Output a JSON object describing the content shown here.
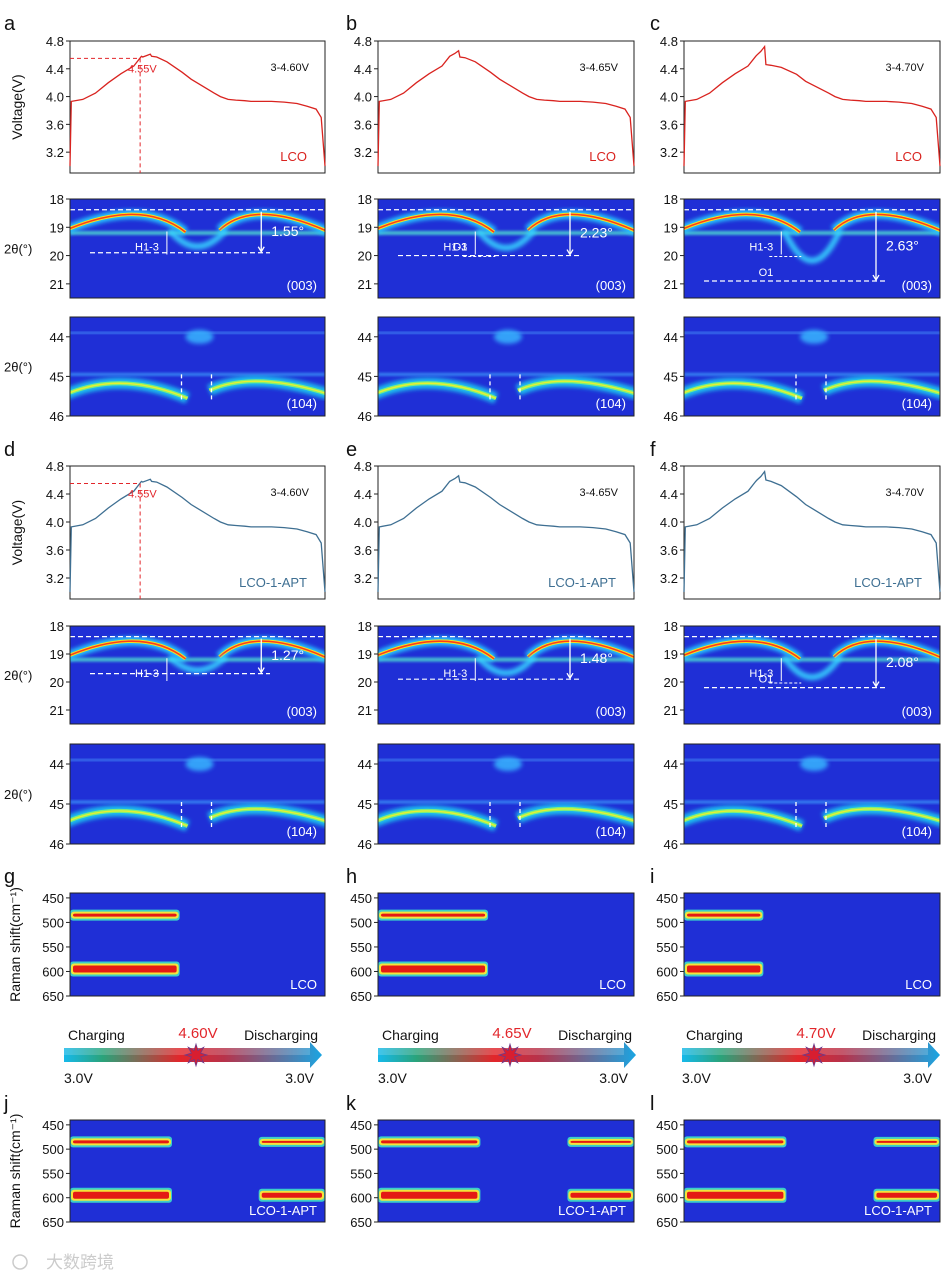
{
  "colors": {
    "lco_curve": "#d9231f",
    "apt_curve": "#3e6f92",
    "marker": "#e2262b",
    "heatmap_bg": "#1f2fd6",
    "arrow_start": "#19b8e8",
    "arrow_end": "#1fa7e0"
  },
  "chart_data": [
    {
      "type": "line",
      "panel": "a",
      "ylabel": "Voltage(V)",
      "ylim": [
        2.9,
        4.8
      ],
      "yticks": [
        "4.8",
        "4.4",
        "4.0",
        "3.6",
        "3.2"
      ],
      "range_label": "3-4.60V",
      "sample_label": "LCO",
      "sample": "lco",
      "marker_label": "4.55V",
      "marker_voltage": 4.55,
      "marker_time": 0.55,
      "peak": 4.6,
      "x": [
        0.0,
        0.01,
        0.1,
        0.2,
        0.3,
        0.4,
        0.5,
        0.56,
        0.57,
        0.6,
        0.63,
        0.64,
        0.68,
        0.76,
        0.88,
        0.95,
        1.13,
        1.18,
        1.24,
        1.3,
        1.37,
        1.42,
        1.58,
        1.68,
        1.78,
        1.86,
        1.93,
        1.97,
        2.0
      ],
      "y": [
        3.0,
        3.93,
        3.96,
        4.05,
        4.2,
        4.33,
        4.44,
        4.58,
        4.57,
        4.59,
        4.61,
        4.58,
        4.57,
        4.5,
        4.35,
        4.25,
        4.05,
        4.0,
        3.96,
        3.95,
        3.94,
        3.93,
        3.93,
        3.92,
        3.9,
        3.86,
        3.82,
        3.7,
        3.0
      ]
    },
    {
      "type": "line",
      "panel": "b",
      "ylabel": "",
      "ylim": [
        2.9,
        4.8
      ],
      "yticks": [
        "4.8",
        "4.4",
        "4.0",
        "3.6",
        "3.2"
      ],
      "range_label": "3-4.65V",
      "sample_label": "LCO",
      "sample": "lco",
      "peak": 4.65,
      "x": [
        0.0,
        0.01,
        0.1,
        0.2,
        0.3,
        0.4,
        0.5,
        0.56,
        0.57,
        0.6,
        0.63,
        0.64,
        0.68,
        0.76,
        0.88,
        0.95,
        1.13,
        1.18,
        1.24,
        1.3,
        1.37,
        1.42,
        1.58,
        1.68,
        1.78,
        1.86,
        1.93,
        1.97,
        2.0
      ],
      "y": [
        3.0,
        3.93,
        3.96,
        4.05,
        4.2,
        4.33,
        4.44,
        4.58,
        4.59,
        4.62,
        4.66,
        4.57,
        4.56,
        4.5,
        4.35,
        4.25,
        4.05,
        4.0,
        3.96,
        3.95,
        3.94,
        3.93,
        3.93,
        3.92,
        3.9,
        3.86,
        3.82,
        3.7,
        3.0
      ]
    },
    {
      "type": "line",
      "panel": "c",
      "ylabel": "",
      "ylim": [
        2.9,
        4.8
      ],
      "yticks": [
        "4.8",
        "4.4",
        "4.0",
        "3.6",
        "3.2"
      ],
      "range_label": "3-4.70V",
      "sample_label": "LCO",
      "sample": "lco",
      "peak": 4.7,
      "x": [
        0.0,
        0.01,
        0.1,
        0.2,
        0.3,
        0.4,
        0.5,
        0.56,
        0.57,
        0.6,
        0.63,
        0.64,
        0.68,
        0.76,
        0.88,
        0.95,
        1.13,
        1.18,
        1.24,
        1.3,
        1.37,
        1.42,
        1.58,
        1.68,
        1.78,
        1.86,
        1.93,
        1.97,
        2.0
      ],
      "y": [
        3.0,
        3.93,
        3.96,
        4.05,
        4.2,
        4.33,
        4.44,
        4.58,
        4.6,
        4.65,
        4.72,
        4.46,
        4.45,
        4.42,
        4.32,
        4.22,
        4.05,
        4.0,
        3.96,
        3.95,
        3.94,
        3.93,
        3.93,
        3.92,
        3.9,
        3.86,
        3.82,
        3.7,
        3.0
      ]
    },
    {
      "type": "line",
      "panel": "d",
      "ylabel": "Voltage(V)",
      "ylim": [
        2.9,
        4.8
      ],
      "yticks": [
        "4.8",
        "4.4",
        "4.0",
        "3.6",
        "3.2"
      ],
      "range_label": "3-4.60V",
      "sample_label": "LCO-1-APT",
      "sample": "apt",
      "marker_label": "4.55V",
      "marker_voltage": 4.55,
      "marker_time": 0.55,
      "peak": 4.6,
      "x": [
        0.0,
        0.01,
        0.1,
        0.2,
        0.3,
        0.4,
        0.5,
        0.56,
        0.57,
        0.6,
        0.63,
        0.64,
        0.68,
        0.76,
        0.88,
        0.95,
        1.13,
        1.18,
        1.24,
        1.3,
        1.37,
        1.42,
        1.58,
        1.68,
        1.78,
        1.86,
        1.93,
        1.97,
        2.0
      ],
      "y": [
        3.0,
        3.93,
        3.96,
        4.05,
        4.2,
        4.33,
        4.44,
        4.58,
        4.57,
        4.59,
        4.61,
        4.58,
        4.57,
        4.5,
        4.35,
        4.25,
        4.05,
        4.0,
        3.96,
        3.95,
        3.94,
        3.93,
        3.93,
        3.92,
        3.9,
        3.86,
        3.82,
        3.7,
        3.0
      ]
    },
    {
      "type": "line",
      "panel": "e",
      "ylabel": "",
      "ylim": [
        2.9,
        4.8
      ],
      "yticks": [
        "4.8",
        "4.4",
        "4.0",
        "3.6",
        "3.2"
      ],
      "range_label": "3-4.65V",
      "sample_label": "LCO-1-APT",
      "sample": "apt",
      "peak": 4.65,
      "x": [
        0.0,
        0.01,
        0.1,
        0.2,
        0.3,
        0.4,
        0.5,
        0.56,
        0.57,
        0.6,
        0.63,
        0.64,
        0.68,
        0.76,
        0.88,
        0.95,
        1.13,
        1.18,
        1.24,
        1.3,
        1.37,
        1.42,
        1.58,
        1.68,
        1.78,
        1.86,
        1.93,
        1.97,
        2.0
      ],
      "y": [
        3.0,
        3.93,
        3.96,
        4.05,
        4.2,
        4.33,
        4.44,
        4.58,
        4.59,
        4.62,
        4.66,
        4.57,
        4.56,
        4.5,
        4.35,
        4.25,
        4.05,
        4.0,
        3.96,
        3.95,
        3.94,
        3.93,
        3.93,
        3.92,
        3.9,
        3.86,
        3.82,
        3.7,
        3.0
      ]
    },
    {
      "type": "line",
      "panel": "f",
      "ylabel": "",
      "ylim": [
        2.9,
        4.8
      ],
      "yticks": [
        "4.8",
        "4.4",
        "4.0",
        "3.6",
        "3.2"
      ],
      "range_label": "3-4.70V",
      "sample_label": "LCO-1-APT",
      "sample": "apt",
      "peak": 4.7,
      "x": [
        0.0,
        0.01,
        0.1,
        0.2,
        0.3,
        0.4,
        0.5,
        0.56,
        0.57,
        0.6,
        0.63,
        0.64,
        0.68,
        0.76,
        0.88,
        0.95,
        1.13,
        1.18,
        1.24,
        1.3,
        1.37,
        1.42,
        1.58,
        1.68,
        1.78,
        1.86,
        1.93,
        1.97,
        2.0
      ],
      "y": [
        3.0,
        3.93,
        3.96,
        4.05,
        4.2,
        4.33,
        4.44,
        4.58,
        4.6,
        4.65,
        4.72,
        4.6,
        4.58,
        4.52,
        4.36,
        4.25,
        4.05,
        4.0,
        3.96,
        3.95,
        3.94,
        3.93,
        3.93,
        3.92,
        3.9,
        3.86,
        3.82,
        3.7,
        3.0
      ]
    },
    {
      "type": "heatmap",
      "panel": "a",
      "peak": "(003)",
      "ylabel": "2θ(°)",
      "ylim": [
        18,
        21.5
      ],
      "yticks": [
        "18",
        "19",
        "20",
        "21"
      ],
      "shift_label": "1.55°",
      "shift": 1.55,
      "phase_labels": [
        "H1-3"
      ],
      "dip": 19.9
    },
    {
      "type": "heatmap",
      "panel": "b",
      "peak": "(003)",
      "ylabel": "",
      "ylim": [
        18,
        21.5
      ],
      "yticks": [
        "18",
        "19",
        "20",
        "21"
      ],
      "shift_label": "2.23°",
      "shift": 2.23,
      "phase_labels": [
        "H1-3",
        "O1"
      ],
      "dip": 20.0
    },
    {
      "type": "heatmap",
      "panel": "c",
      "peak": "(003)",
      "ylabel": "",
      "ylim": [
        18,
        21.5
      ],
      "yticks": [
        "18",
        "19",
        "20",
        "21"
      ],
      "shift_label": "2.63°",
      "shift": 2.63,
      "phase_labels": [
        "H1-3",
        "O1"
      ],
      "dip": 20.9
    },
    {
      "type": "heatmap",
      "panel": "a",
      "peak": "(104)",
      "ylabel": "2θ(°)",
      "ylim": [
        43.5,
        46
      ],
      "yticks": [
        "44",
        "45",
        "46"
      ]
    },
    {
      "type": "heatmap",
      "panel": "b",
      "peak": "(104)",
      "ylabel": "",
      "ylim": [
        43.5,
        46
      ],
      "yticks": [
        "44",
        "45",
        "46"
      ]
    },
    {
      "type": "heatmap",
      "panel": "c",
      "peak": "(104)",
      "ylabel": "",
      "ylim": [
        43.5,
        46
      ],
      "yticks": [
        "44",
        "45",
        "46"
      ]
    },
    {
      "type": "heatmap",
      "panel": "d",
      "peak": "(003)",
      "ylabel": "2θ(°)",
      "ylim": [
        18,
        21.5
      ],
      "yticks": [
        "18",
        "19",
        "20",
        "21"
      ],
      "shift_label": "1.27°",
      "shift": 1.27,
      "phase_labels": [
        "H1-3"
      ],
      "dip": 19.7
    },
    {
      "type": "heatmap",
      "panel": "e",
      "peak": "(003)",
      "ylabel": "",
      "ylim": [
        18,
        21.5
      ],
      "yticks": [
        "18",
        "19",
        "20",
        "21"
      ],
      "shift_label": "1.48°",
      "shift": 1.48,
      "phase_labels": [
        "H1-3"
      ],
      "dip": 19.9
    },
    {
      "type": "heatmap",
      "panel": "f",
      "peak": "(003)",
      "ylabel": "",
      "ylim": [
        18,
        21.5
      ],
      "yticks": [
        "18",
        "19",
        "20",
        "21"
      ],
      "shift_label": "2.08°",
      "shift": 2.08,
      "phase_labels": [
        "H1-3",
        "O1"
      ],
      "dip": 20.2
    },
    {
      "type": "heatmap",
      "panel": "d",
      "peak": "(104)",
      "ylabel": "2θ(°)",
      "ylim": [
        43.5,
        46
      ],
      "yticks": [
        "44",
        "45",
        "46"
      ]
    },
    {
      "type": "heatmap",
      "panel": "e",
      "peak": "(104)",
      "ylabel": "",
      "ylim": [
        43.5,
        46
      ],
      "yticks": [
        "44",
        "45",
        "46"
      ]
    },
    {
      "type": "heatmap",
      "panel": "f",
      "peak": "(104)",
      "ylabel": "",
      "ylim": [
        43.5,
        46
      ],
      "yticks": [
        "44",
        "45",
        "46"
      ]
    },
    {
      "type": "heatmap",
      "panel": "g",
      "ylabel": "Raman shift(cm⁻¹)",
      "ylim": [
        440,
        650
      ],
      "yticks": [
        "450",
        "500",
        "550",
        "600",
        "650"
      ],
      "sample_label": "LCO",
      "bands": [
        485,
        595
      ],
      "band_end": 0.43
    },
    {
      "type": "heatmap",
      "panel": "h",
      "ylabel": "",
      "ylim": [
        440,
        650
      ],
      "yticks": [
        "450",
        "500",
        "550",
        "600",
        "650"
      ],
      "sample_label": "LCO",
      "bands": [
        485,
        595
      ],
      "band_end": 0.43
    },
    {
      "type": "heatmap",
      "panel": "i",
      "ylabel": "",
      "ylim": [
        440,
        650
      ],
      "yticks": [
        "450",
        "500",
        "550",
        "600",
        "650"
      ],
      "sample_label": "LCO",
      "bands": [
        485,
        595
      ],
      "band_end": 0.31
    },
    {
      "type": "heatmap",
      "panel": "j",
      "ylabel": "Raman shift(cm⁻¹)",
      "ylim": [
        440,
        650
      ],
      "yticks": [
        "450",
        "500",
        "550",
        "600",
        "650"
      ],
      "sample_label": "LCO-1-APT",
      "bands": [
        485,
        595
      ],
      "band_end": 0.4,
      "recover_start": 0.74
    },
    {
      "type": "heatmap",
      "panel": "k",
      "ylabel": "",
      "ylim": [
        440,
        650
      ],
      "yticks": [
        "450",
        "500",
        "550",
        "600",
        "650"
      ],
      "sample_label": "LCO-1-APT",
      "bands": [
        485,
        595
      ],
      "band_end": 0.4,
      "recover_start": 0.74
    },
    {
      "type": "heatmap",
      "panel": "l",
      "ylabel": "",
      "ylim": [
        440,
        650
      ],
      "yticks": [
        "450",
        "500",
        "550",
        "600",
        "650"
      ],
      "sample_label": "LCO-1-APT",
      "bands": [
        485,
        595
      ],
      "band_end": 0.4,
      "recover_start": 0.74
    }
  ],
  "arrows": [
    {
      "charge_label": "Charging",
      "discharge_label": "Discharging",
      "cutoff_label": "4.60V",
      "start_label": "3.0V",
      "end_label": "3.0V"
    },
    {
      "charge_label": "Charging",
      "discharge_label": "Discharging",
      "cutoff_label": "4.65V",
      "start_label": "3.0V",
      "end_label": "3.0V"
    },
    {
      "charge_label": "Charging",
      "discharge_label": "Discharging",
      "cutoff_label": "4.70V",
      "start_label": "3.0V",
      "end_label": "3.0V"
    }
  ],
  "panel_letters": [
    "a",
    "b",
    "c",
    "d",
    "e",
    "f",
    "g",
    "h",
    "i",
    "j",
    "k",
    "l"
  ],
  "watermark": "大数跨境"
}
